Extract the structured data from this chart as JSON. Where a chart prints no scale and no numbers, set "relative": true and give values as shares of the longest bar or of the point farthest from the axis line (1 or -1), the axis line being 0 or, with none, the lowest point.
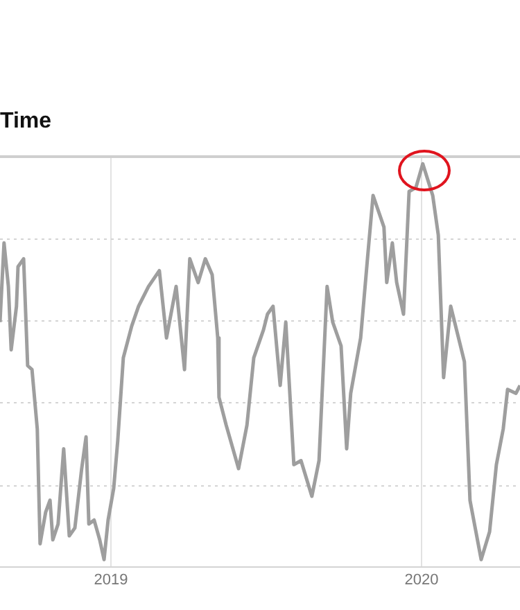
{
  "chart_data": {
    "type": "line",
    "title": "Time",
    "relative": true,
    "grid": true,
    "legend": false,
    "xlim": [
      2018.643,
      2020.317
    ],
    "xticks": [
      2019,
      2020
    ],
    "series": [
      {
        "color": "#9e9e9e",
        "x": [
          2018.643,
          2018.656,
          2018.67,
          2018.679,
          2018.696,
          2018.701,
          2018.719,
          2018.732,
          2018.746,
          2018.763,
          2018.772,
          2018.79,
          2018.804,
          2018.813,
          2018.83,
          2018.848,
          2018.866,
          2018.884,
          2018.906,
          2018.92,
          2018.929,
          2018.946,
          2018.964,
          2018.978,
          2018.991,
          2019.009,
          2019.022,
          2019.04,
          2019.067,
          2019.089,
          2019.121,
          2019.156,
          2019.179,
          2019.21,
          2019.237,
          2019.254,
          2019.281,
          2019.304,
          2019.326,
          2019.344,
          2019.348,
          2019.371,
          2019.411,
          2019.438,
          2019.46,
          2019.491,
          2019.504,
          2019.522,
          2019.545,
          2019.563,
          2019.589,
          2019.612,
          2019.647,
          2019.67,
          2019.696,
          2019.714,
          2019.741,
          2019.759,
          2019.772,
          2019.804,
          2019.826,
          2019.844,
          2019.879,
          2019.888,
          2019.906,
          2019.92,
          2019.942,
          2019.96,
          2019.982,
          2020.004,
          2020.036,
          2020.054,
          2020.071,
          2020.094,
          2020.116,
          2020.138,
          2020.156,
          2020.192,
          2020.219,
          2020.241,
          2020.263,
          2020.277,
          2020.304,
          2020.317
        ],
        "values": [
          0.6,
          0.8,
          0.69,
          0.53,
          0.64,
          0.74,
          0.76,
          0.49,
          0.48,
          0.33,
          0.04,
          0.12,
          0.15,
          0.05,
          0.09,
          0.28,
          0.06,
          0.08,
          0.23,
          0.31,
          0.09,
          0.1,
          0.05,
          0,
          0.1,
          0.18,
          0.3,
          0.51,
          0.59,
          0.64,
          0.69,
          0.73,
          0.56,
          0.69,
          0.48,
          0.76,
          0.7,
          0.76,
          0.72,
          0.56,
          0.41,
          0.34,
          0.23,
          0.34,
          0.51,
          0.58,
          0.62,
          0.64,
          0.44,
          0.6,
          0.24,
          0.25,
          0.16,
          0.25,
          0.69,
          0.6,
          0.54,
          0.28,
          0.42,
          0.56,
          0.76,
          0.92,
          0.84,
          0.7,
          0.8,
          0.7,
          0.62,
          0.93,
          0.94,
          1,
          0.92,
          0.82,
          0.46,
          0.64,
          0.57,
          0.5,
          0.15,
          0,
          0.07,
          0.24,
          0.33,
          0.43,
          0.42,
          0.44
        ]
      }
    ]
  }
}
